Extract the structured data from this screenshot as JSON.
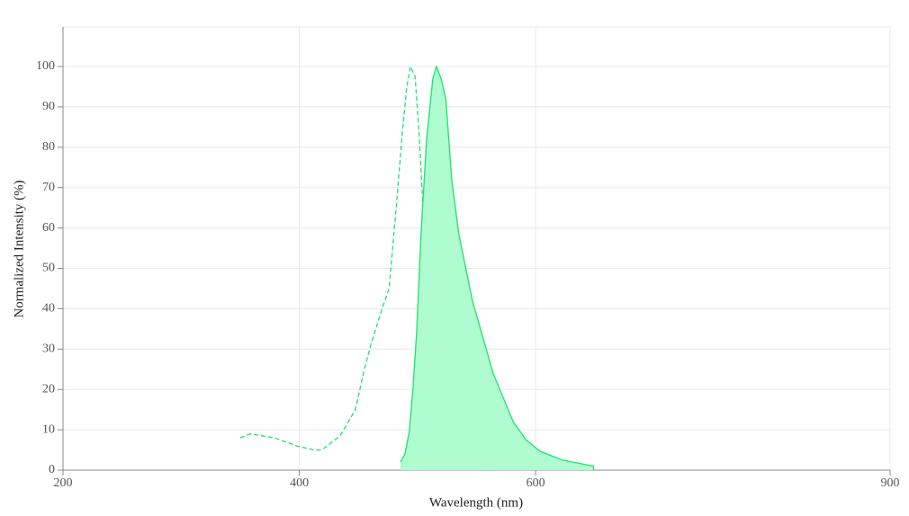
{
  "chart_data": {
    "type": "line",
    "x_label": "Wavelength (nm)",
    "y_label": "Normalized Intensity (%)",
    "xlim": [
      200,
      900
    ],
    "xticks": [
      200,
      400,
      600,
      900
    ],
    "ylim": [
      0,
      100
    ],
    "yticks": [
      0,
      10,
      20,
      30,
      40,
      50,
      60,
      70,
      80,
      90,
      100
    ],
    "grid": true,
    "series": [
      {
        "color": "#22e06e",
        "dashed": true,
        "filled": false,
        "x": [
          350,
          358.4,
          379,
          398,
          413,
          419,
          434.6,
          447.5,
          455,
          460.5,
          470,
          476,
          482,
          487,
          491,
          494,
          498,
          501.5,
          505.4,
          510,
          514,
          517.6,
          523,
          531,
          543,
          558
        ],
        "values": [
          8,
          9,
          8,
          6,
          5,
          5,
          8.5,
          15,
          25,
          31,
          40,
          45,
          65,
          83,
          95,
          100,
          97.5,
          83,
          61,
          38.5,
          23,
          14,
          6,
          3,
          0.7,
          0
        ]
      },
      {
        "color": "#22e06e",
        "fill_color": "#aefcd0",
        "dashed": false,
        "filled": true,
        "x": [
          485.6,
          489.4,
          493,
          496,
          499.3,
          503,
          507.7,
          513,
          516,
          520,
          524,
          529,
          535,
          546.5,
          564,
          581,
          592,
          603.6,
          622.7,
          649
        ],
        "values": [
          2,
          4,
          9.5,
          19.5,
          34,
          58.5,
          82,
          97,
          100,
          97,
          92,
          72,
          58.5,
          42,
          24,
          12,
          7.5,
          4.7,
          2.5,
          1
        ]
      }
    ]
  }
}
